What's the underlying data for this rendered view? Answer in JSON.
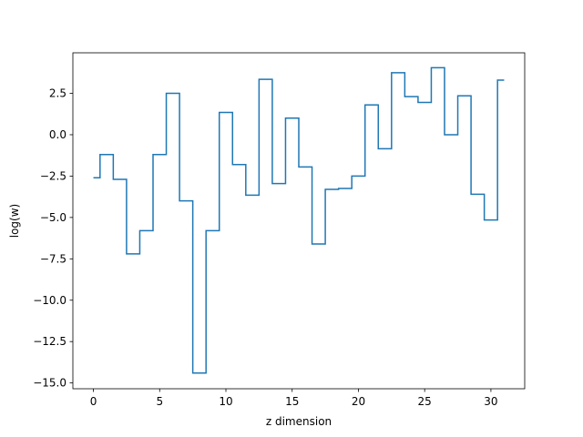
{
  "chart_data": {
    "type": "line",
    "drawstyle": "steps-mid",
    "title": "",
    "xlabel": "z dimension",
    "ylabel": "log(w)",
    "xlim": [
      -1.55,
      32.55
    ],
    "ylim": [
      -15.35,
      4.95
    ],
    "xticks": [
      0,
      5,
      10,
      15,
      20,
      25,
      30
    ],
    "yticks": [
      -15.0,
      -12.5,
      -10.0,
      -7.5,
      -5.0,
      -2.5,
      0.0,
      2.5
    ],
    "ytick_labels": [
      "−15.0",
      "−12.5",
      "−10.0",
      "−7.5",
      "−5.0",
      "−2.5",
      "0.0",
      "2.5"
    ],
    "xtick_labels": [
      "0",
      "5",
      "10",
      "15",
      "20",
      "25",
      "30"
    ],
    "grid": false,
    "line_color": "#1f77b4",
    "series": [
      {
        "x": [
          0,
          1,
          2,
          3,
          4,
          5,
          6,
          7,
          8,
          9,
          10,
          11,
          12,
          13,
          14,
          15,
          16,
          17,
          18,
          19,
          20,
          21,
          22,
          23,
          24,
          25,
          26,
          27,
          28,
          29,
          30,
          31
        ],
        "y": [
          -2.6,
          -1.2,
          -2.7,
          -7.2,
          -5.8,
          -1.2,
          2.5,
          -4.0,
          -14.4,
          -5.8,
          1.35,
          -1.8,
          -3.65,
          3.35,
          -2.95,
          1.0,
          -1.95,
          -6.6,
          -3.3,
          -3.25,
          -2.5,
          1.8,
          -0.85,
          3.75,
          2.3,
          1.95,
          4.05,
          0.0,
          2.35,
          -3.6,
          -5.15,
          3.3
        ]
      }
    ]
  }
}
